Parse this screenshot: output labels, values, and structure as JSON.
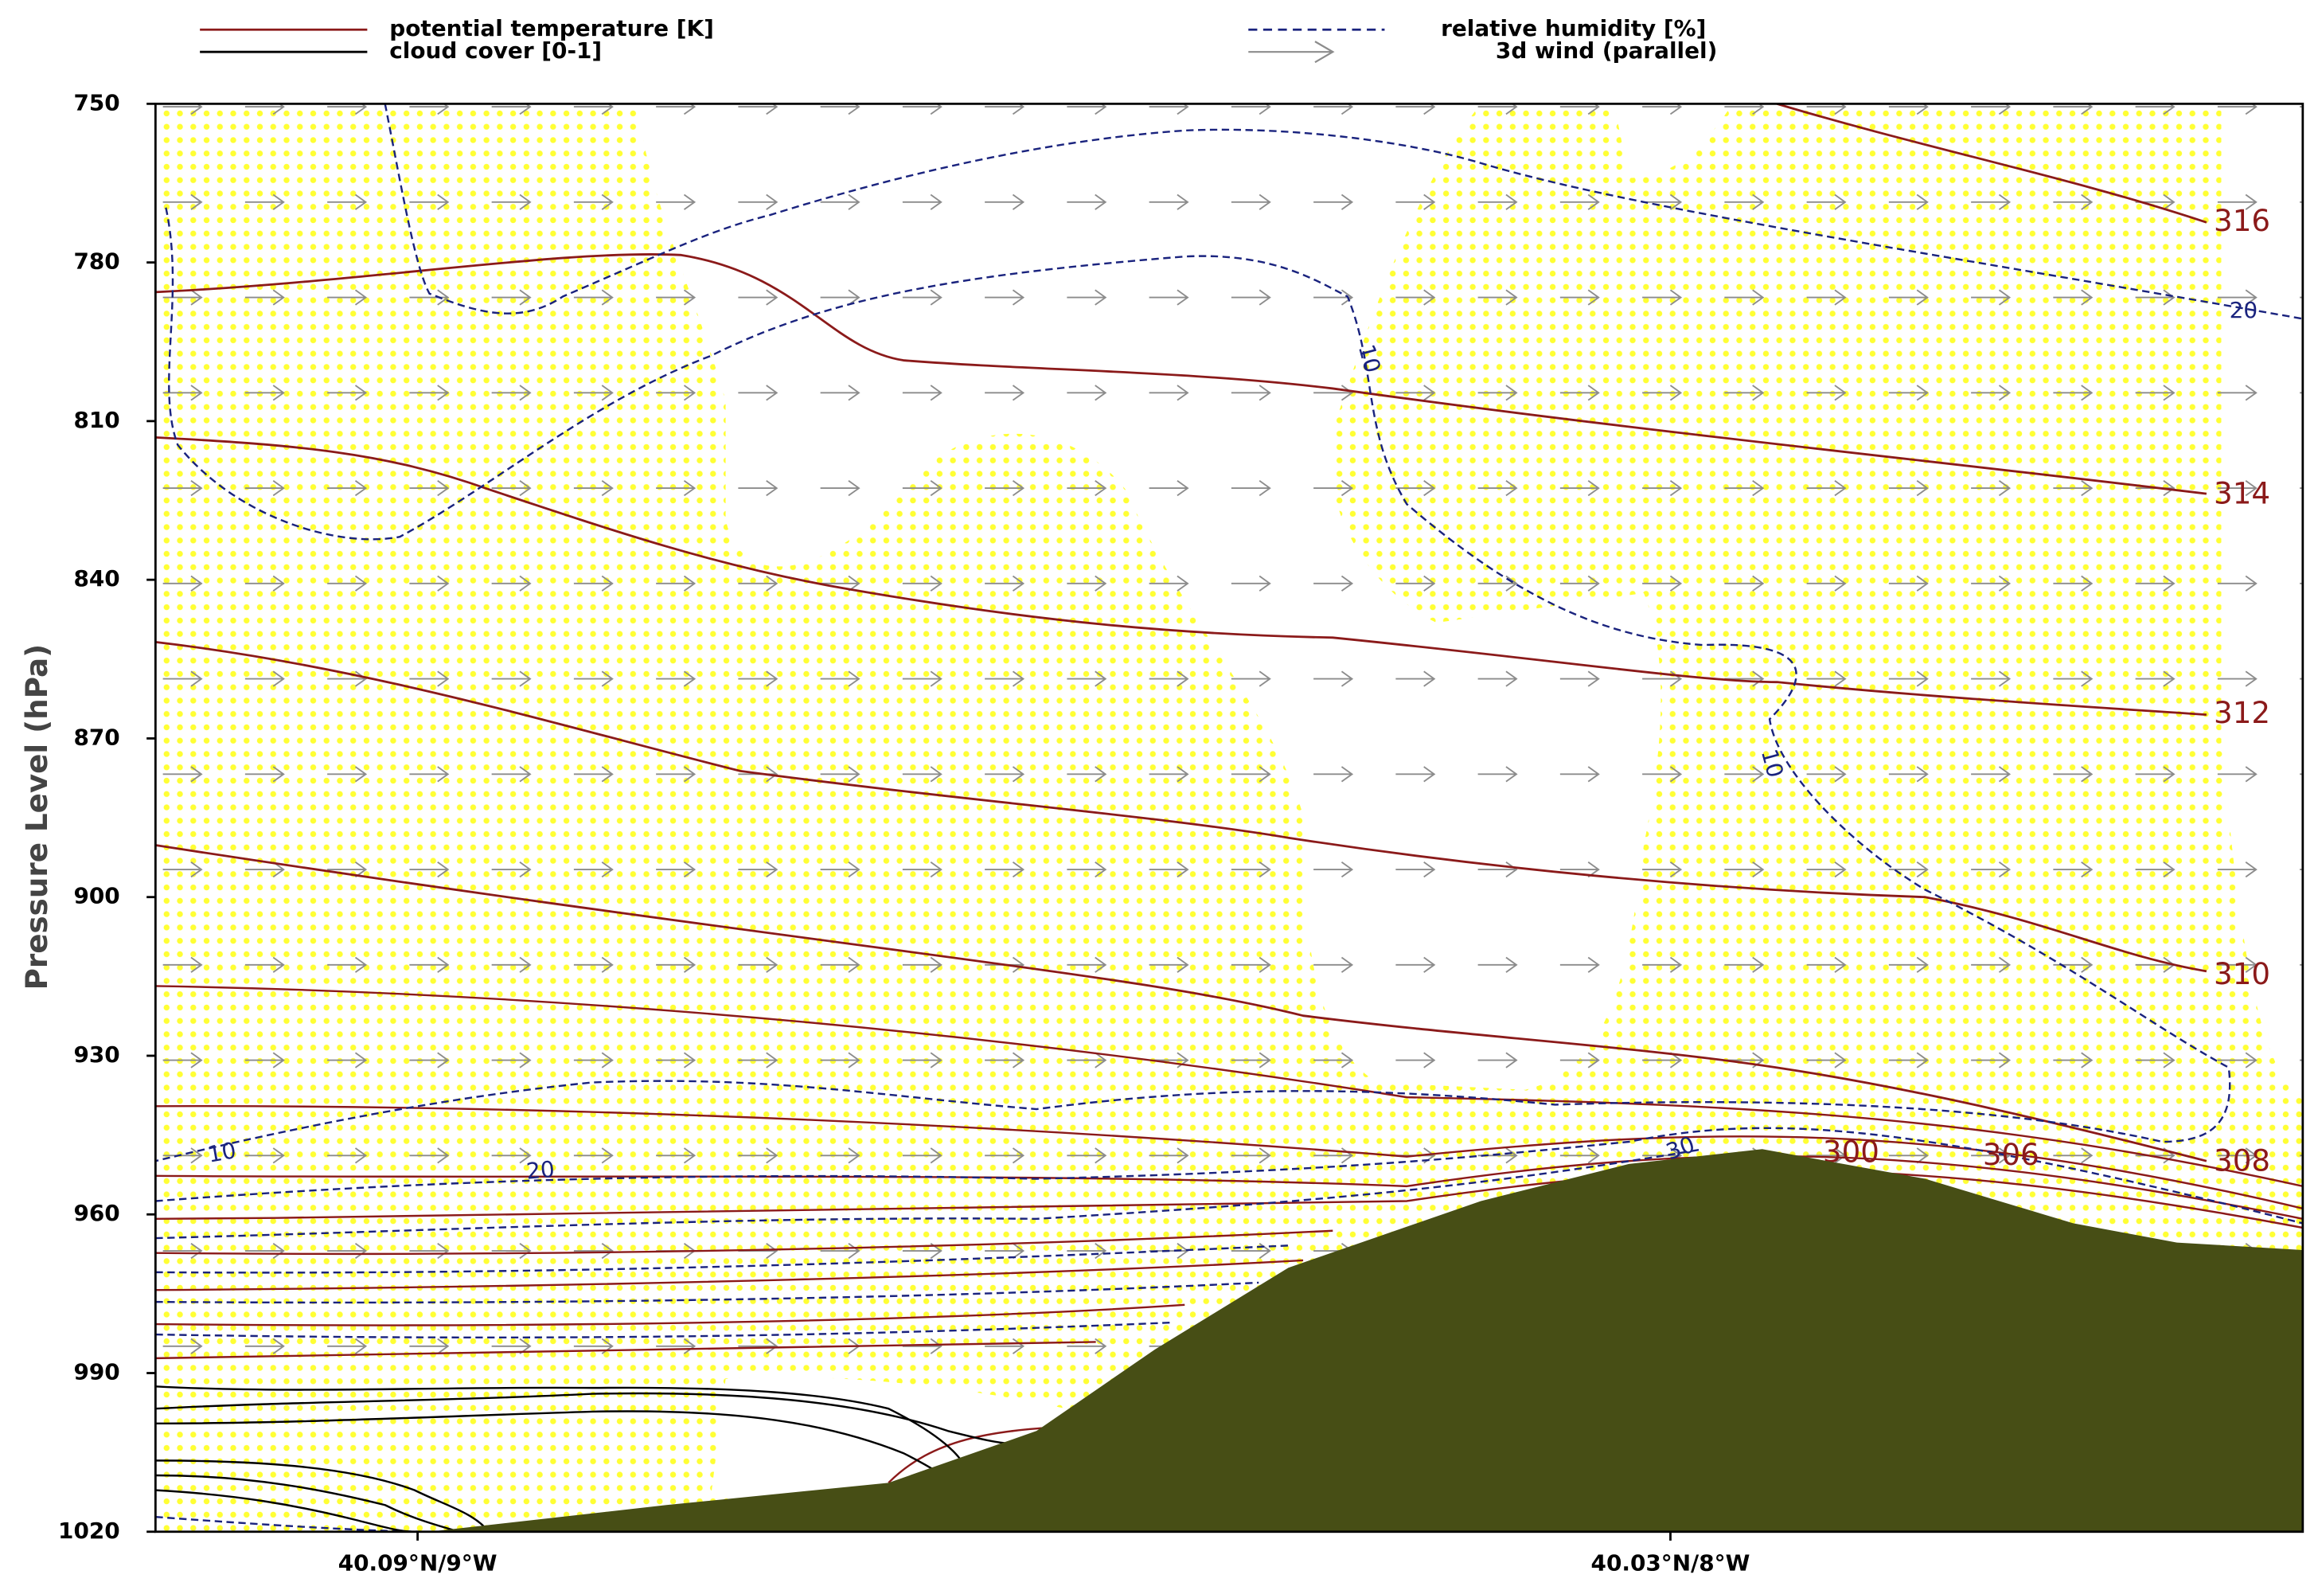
{
  "chart_data": {
    "type": "cross-section",
    "legend": [
      "potential temperature [K]",
      "cloud cover [0-1]",
      "relative humidity [%]",
      "3d wind (parallel)"
    ],
    "y_label": "Pressure Level (hPa)",
    "ylim": [
      750,
      1020
    ],
    "yticks": [
      750,
      780,
      810,
      840,
      870,
      900,
      930,
      960,
      990,
      1020
    ],
    "categories": [
      "40.09°N/9°W",
      "40.03°N/8°W"
    ],
    "theta_labels": [
      316,
      314,
      312,
      310,
      308,
      306,
      300
    ],
    "rh_labels": [
      20,
      10,
      10,
      10,
      20,
      30
    ],
    "colors": {
      "theta": "#8b1a1a",
      "cloud": "#000000",
      "rh": "#1a237e",
      "wind": "#8c8c8c",
      "terrain": "#474e15",
      "cloud_fill": "#ffff33"
    }
  }
}
